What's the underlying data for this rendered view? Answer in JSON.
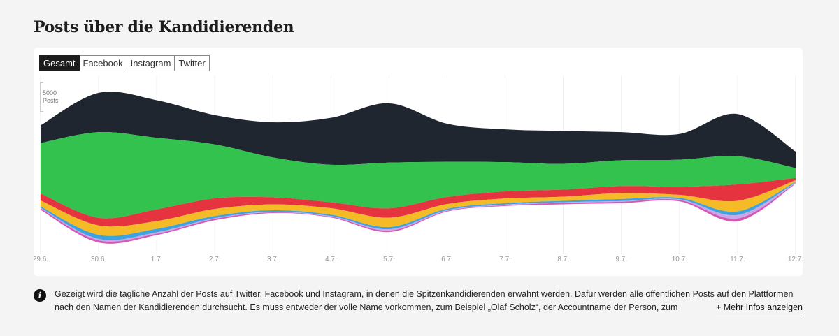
{
  "title": "Posts über die Kandidierenden",
  "tabs": [
    {
      "label": "Gesamt",
      "active": true
    },
    {
      "label": "Facebook"
    },
    {
      "label": "Instagram"
    },
    {
      "label": "Twitter"
    }
  ],
  "info": {
    "text": "Gezeigt wird die tägliche Anzahl der Posts auf Twitter, Facebook und Instagram, in denen die Spitzenkandidierenden erwähnt werden. Dafür werden alle öffentlichen Posts auf den Plattformen nach den Namen der Kandidierenden durchsucht. Es muss entweder der volle Name vorkommen, zum Beispiel „Olaf Scholz“, der Accountname der Person, zum Beispiel @OlafScholz, oder ein Hashtag.",
    "more_label": "+ Mehr Infos anzeigen",
    "icon": "info-icon"
  },
  "chart_data": {
    "type": "area",
    "subtype": "streamgraph",
    "title": "Posts über die Kandidierenden",
    "scale_label": [
      "5000",
      "Posts"
    ],
    "scale_value": 5000,
    "categories": [
      "29.6.",
      "30.6.",
      "1.7.",
      "2.7.",
      "3.7.",
      "4.7.",
      "5.7.",
      "6.7.",
      "7.7.",
      "8.7.",
      "9.7.",
      "10.7.",
      "11.7.",
      "12.7."
    ],
    "series": [
      {
        "color": "#1f2630",
        "values": [
          3000,
          6700,
          6400,
          5000,
          6000,
          8000,
          10100,
          6500,
          5600,
          5600,
          4800,
          4400,
          7200,
          2800
        ]
      },
      {
        "color": "#33c24d",
        "values": [
          8600,
          14600,
          12200,
          9200,
          6800,
          6400,
          7800,
          6000,
          5000,
          4400,
          4400,
          4600,
          4800,
          1700
        ]
      },
      {
        "color": "#e5333f",
        "values": [
          1200,
          1300,
          2000,
          1800,
          1200,
          1000,
          1600,
          1200,
          1200,
          1200,
          1200,
          1400,
          2800,
          400
        ]
      },
      {
        "color": "#f5bb27",
        "values": [
          1000,
          1600,
          1300,
          1200,
          1000,
          1100,
          1600,
          800,
          800,
          700,
          1000,
          500,
          1800,
          240
        ]
      },
      {
        "color": "#3da3e0",
        "values": [
          240,
          700,
          600,
          360,
          240,
          240,
          360,
          240,
          240,
          240,
          360,
          240,
          600,
          120
        ]
      },
      {
        "color": "#c9a7e8",
        "values": [
          120,
          240,
          240,
          120,
          120,
          120,
          240,
          120,
          120,
          120,
          120,
          120,
          600,
          120
        ]
      },
      {
        "color": "#d458b8",
        "values": [
          240,
          360,
          240,
          240,
          120,
          120,
          240,
          120,
          120,
          240,
          240,
          240,
          480,
          120
        ]
      }
    ],
    "grid": true
  }
}
